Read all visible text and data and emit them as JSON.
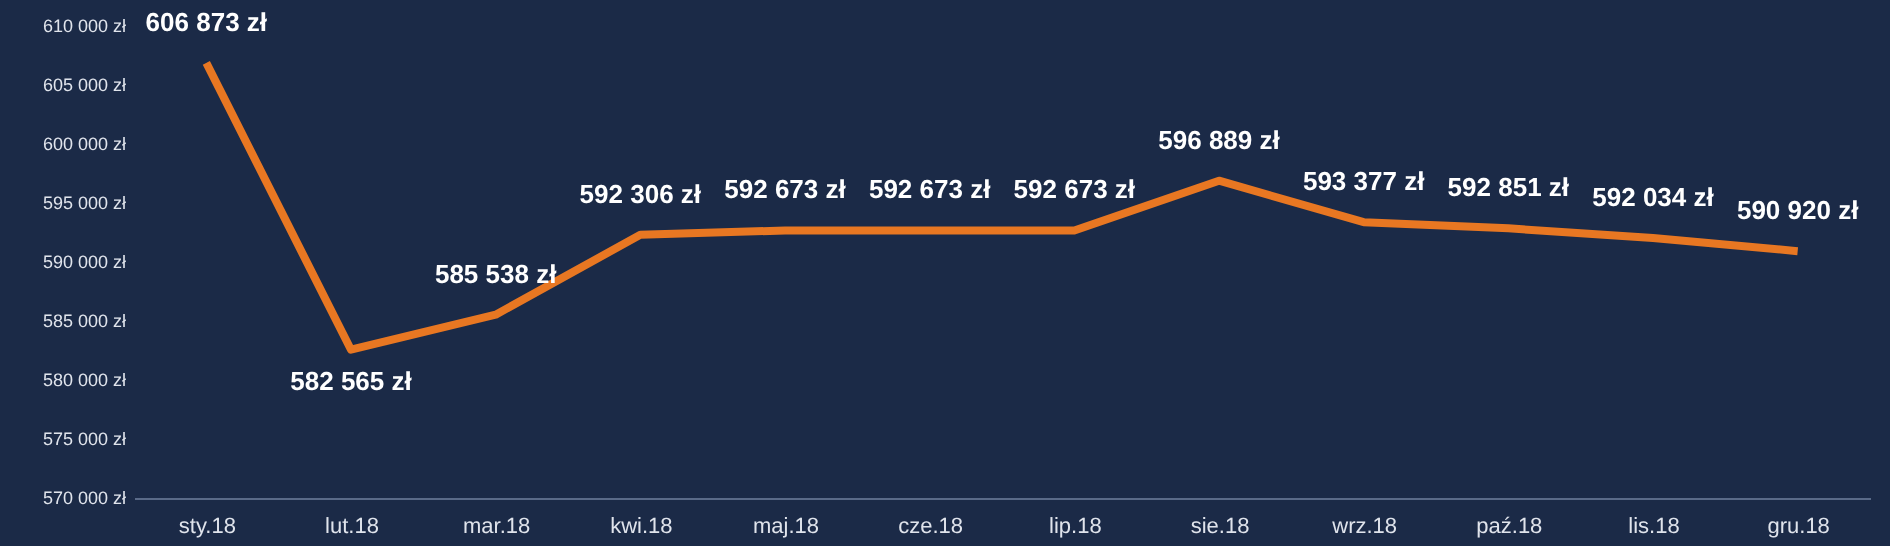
{
  "chart_data": {
    "type": "line",
    "categories": [
      "sty.18",
      "lut.18",
      "mar.18",
      "kwi.18",
      "maj.18",
      "cze.18",
      "lip.18",
      "sie.18",
      "wrz.18",
      "paź.18",
      "lis.18",
      "gru.18"
    ],
    "series": [
      {
        "color": "#e87722",
        "values": [
          606873,
          582565,
          585538,
          592306,
          592673,
          592673,
          592673,
          596889,
          593377,
          592851,
          592034,
          590920
        ],
        "value_labels": [
          "606 873 zł",
          "582 565 zł",
          "585 538 zł",
          "592 306 zł",
          "592 673 zł",
          "592 673 zł",
          "592 673 zł",
          "596 889 zł",
          "593 377 zł",
          "592 851 zł",
          "592 034 zł",
          "590 920 zł"
        ]
      }
    ],
    "ylim": [
      570000,
      610000
    ],
    "yticks": [
      {
        "value": 570000,
        "label": "570 000 zł"
      },
      {
        "value": 575000,
        "label": "575 000 zł"
      },
      {
        "value": 580000,
        "label": "580 000 zł"
      },
      {
        "value": 585000,
        "label": "585 000 zł"
      },
      {
        "value": 590000,
        "label": "590 000 zł"
      },
      {
        "value": 595000,
        "label": "595 000 zł"
      },
      {
        "value": 600000,
        "label": "600 000 zł"
      },
      {
        "value": 605000,
        "label": "605 000 zł"
      },
      {
        "value": 610000,
        "label": "610 000 zł"
      }
    ],
    "marker": "none",
    "line_style": "solid",
    "grid": false,
    "legend": false
  }
}
